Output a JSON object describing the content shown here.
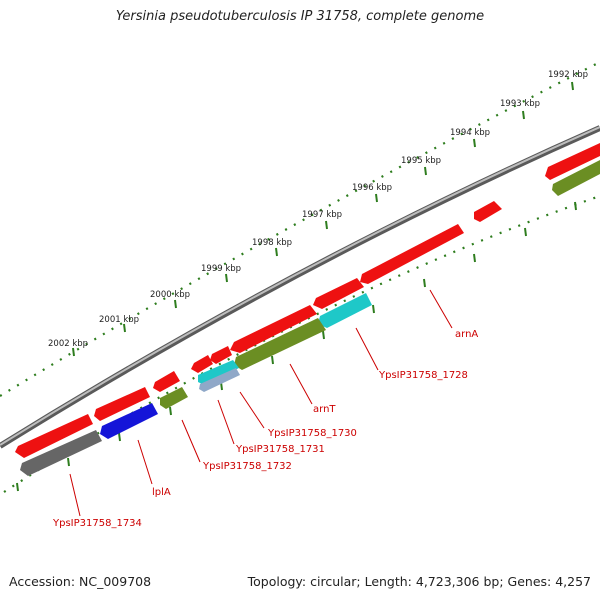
{
  "title": "Yersinia pseudotuberculosis IP 31758, complete genome",
  "footer": {
    "accession": "Accession: NC_009708",
    "summary": "Topology: circular; Length: 4,723,306 bp; Genes: 4,257"
  },
  "ticks": [
    "1992 kbp",
    "1993 kbp",
    "1994 kbp",
    "1995 kbp",
    "1996 kbp",
    "1997 kbp",
    "1998 kbp",
    "1999 kbp",
    "2000 kbp",
    "2001 kbp",
    "2002 kbp"
  ],
  "gene_labels": [
    "arnA",
    "YpsIP31758_1728",
    "arnT",
    "YpsIP31758_1730",
    "YpsIP31758_1731",
    "YpsIP31758_1732",
    "lplA",
    "YpsIP31758_1734"
  ],
  "colors": {
    "backbone": "#8a8a8a",
    "tick": "#2e7d1e",
    "gene_forward": "#ee1111",
    "gene_blue": "#1515d8",
    "gene_olive": "#6b8e23",
    "gene_cyan": "#1ec8c8",
    "gene_gray": "#666666",
    "gene_lightblue": "#8fa8c8",
    "label": "#cc0000"
  }
}
